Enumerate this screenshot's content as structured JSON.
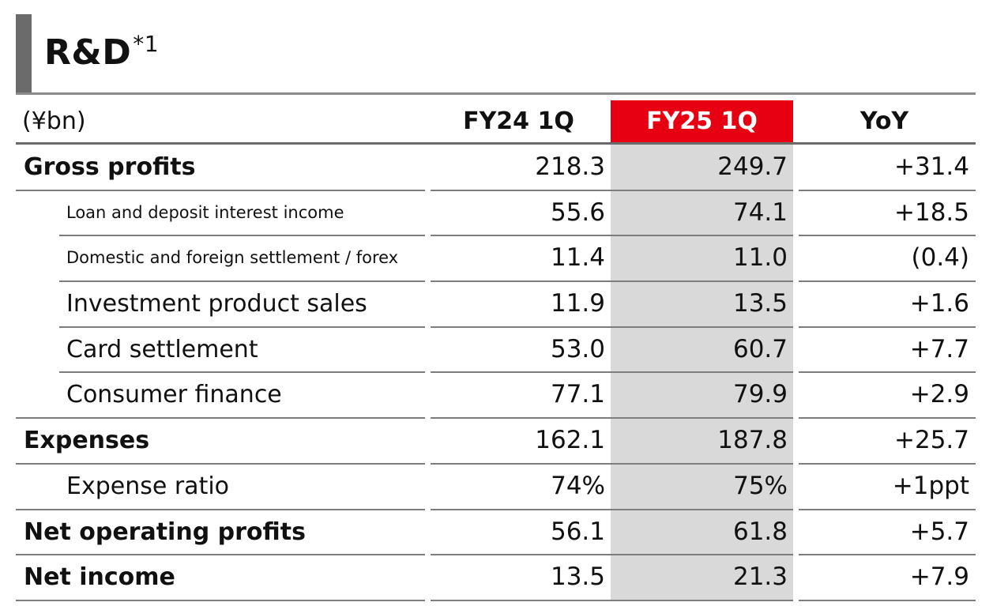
{
  "title": "R&D",
  "title_footnote": "*1",
  "unit_label": "(¥bn)",
  "columns": [
    "FY24 1Q",
    "FY25 1Q",
    "YoY"
  ],
  "highlight_color": "#e60012",
  "rows": [
    {
      "label": "Gross profits",
      "fy24": "218.3",
      "fy25": "249.7",
      "yoy": "+31.4"
    },
    {
      "label": "Loan and deposit interest income",
      "fy24": "55.6",
      "fy25": "74.1",
      "yoy": "+18.5"
    },
    {
      "label": "Domestic and foreign settlement / forex",
      "fy24": "11.4",
      "fy25": "11.0",
      "yoy": "(0.4)"
    },
    {
      "label": "Investment product sales",
      "fy24": "11.9",
      "fy25": "13.5",
      "yoy": "+1.6"
    },
    {
      "label": "Card settlement",
      "fy24": "53.0",
      "fy25": "60.7",
      "yoy": "+7.7"
    },
    {
      "label": "Consumer finance",
      "fy24": "77.1",
      "fy25": "79.9",
      "yoy": "+2.9"
    },
    {
      "label": "Expenses",
      "fy24": "162.1",
      "fy25": "187.8",
      "yoy": "+25.7"
    },
    {
      "label": "Expense ratio",
      "fy24": "74%",
      "fy25": "75%",
      "yoy": "+1ppt"
    },
    {
      "label": "Net operating profits",
      "fy24": "56.1",
      "fy25": "61.8",
      "yoy": "+5.7"
    },
    {
      "label": "Net income",
      "fy24": "13.5",
      "fy25": "21.3",
      "yoy": "+7.9"
    }
  ]
}
